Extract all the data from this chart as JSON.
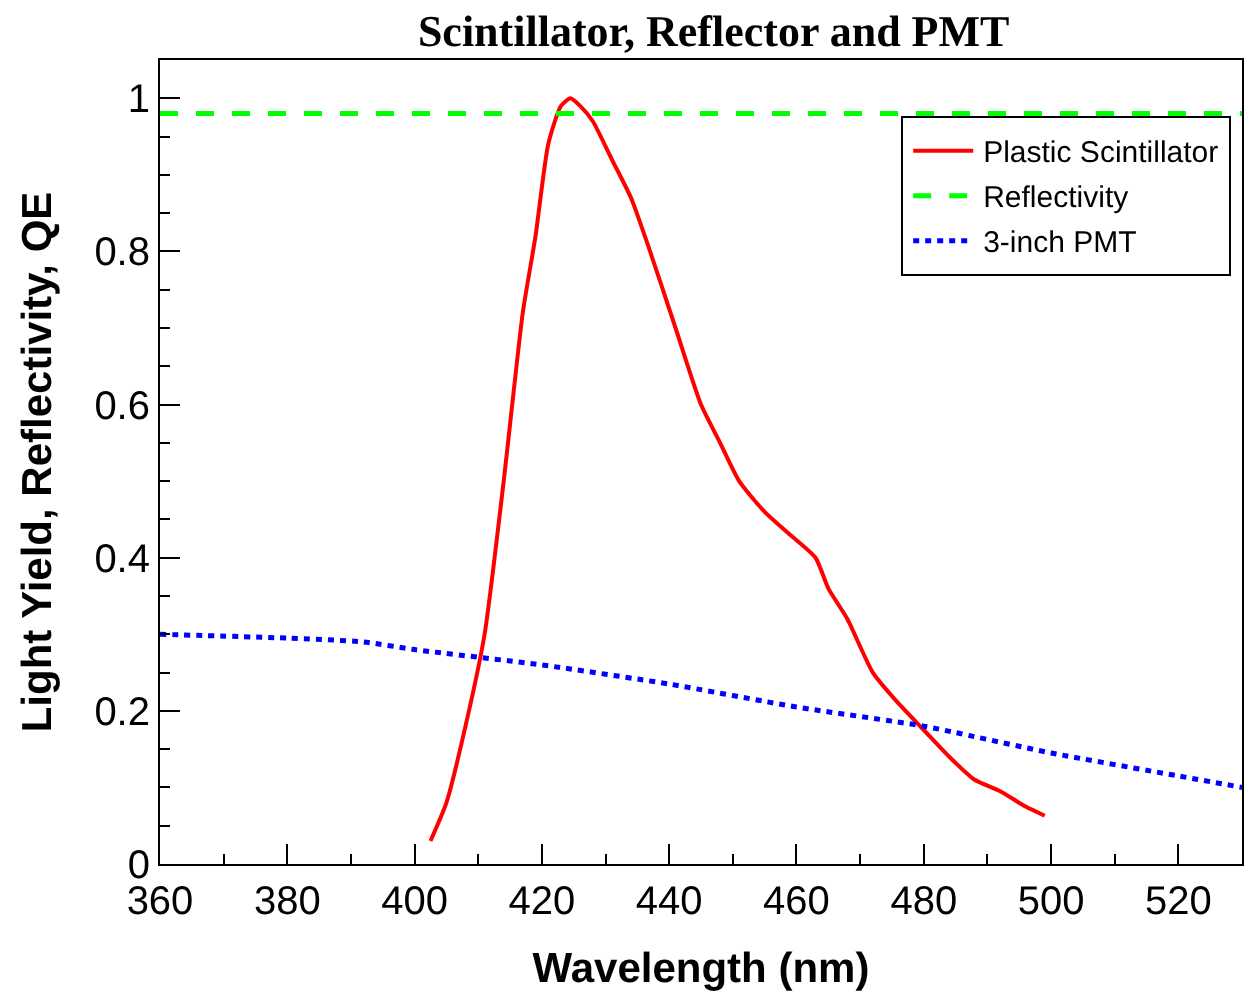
{
  "chart_data": {
    "type": "line",
    "title": "Scintillator, Reflector and PMT",
    "xlabel": "Wavelength (nm)",
    "ylabel": "Light Yield, Reflectivity, QE",
    "xlim": [
      360,
      530
    ],
    "xticks": [
      360,
      380,
      400,
      420,
      440,
      460,
      480,
      500,
      520
    ],
    "ylim": [
      0,
      1.05
    ],
    "yticks": [
      0,
      0.2,
      0.4,
      0.6,
      0.8,
      1
    ],
    "legend": "top right",
    "marker": "none",
    "series": [
      {
        "name": "Plastic Scintillator",
        "color": "#ff0000",
        "line_style": "solid",
        "x": [
          402.5,
          405,
          408,
          411,
          414,
          417,
          419,
          421,
          423,
          424.5,
          426,
          428,
          431,
          434,
          437,
          441,
          445,
          448,
          451,
          455,
          459,
          463,
          465,
          468,
          472,
          476,
          480,
          484,
          488,
          492,
          496,
          499
        ],
        "values": [
          0.03,
          0.08,
          0.18,
          0.3,
          0.5,
          0.72,
          0.82,
          0.94,
          0.99,
          1.0,
          0.99,
          0.97,
          0.92,
          0.87,
          0.8,
          0.7,
          0.6,
          0.55,
          0.5,
          0.46,
          0.43,
          0.4,
          0.36,
          0.32,
          0.25,
          0.21,
          0.175,
          0.14,
          0.11,
          0.095,
          0.075,
          0.063
        ]
      },
      {
        "name": "Reflectivity",
        "color": "#00ff00",
        "line_style": "dashed",
        "x": [
          360,
          530
        ],
        "values": [
          0.98,
          0.98
        ]
      },
      {
        "name": "3-inch PMT",
        "color": "#0000ff",
        "line_style": "dotted",
        "x": [
          360,
          380,
          392,
          400,
          420,
          440,
          460,
          480,
          500,
          520,
          530
        ],
        "values": [
          0.3,
          0.295,
          0.29,
          0.28,
          0.26,
          0.235,
          0.205,
          0.18,
          0.145,
          0.115,
          0.1
        ]
      }
    ]
  }
}
